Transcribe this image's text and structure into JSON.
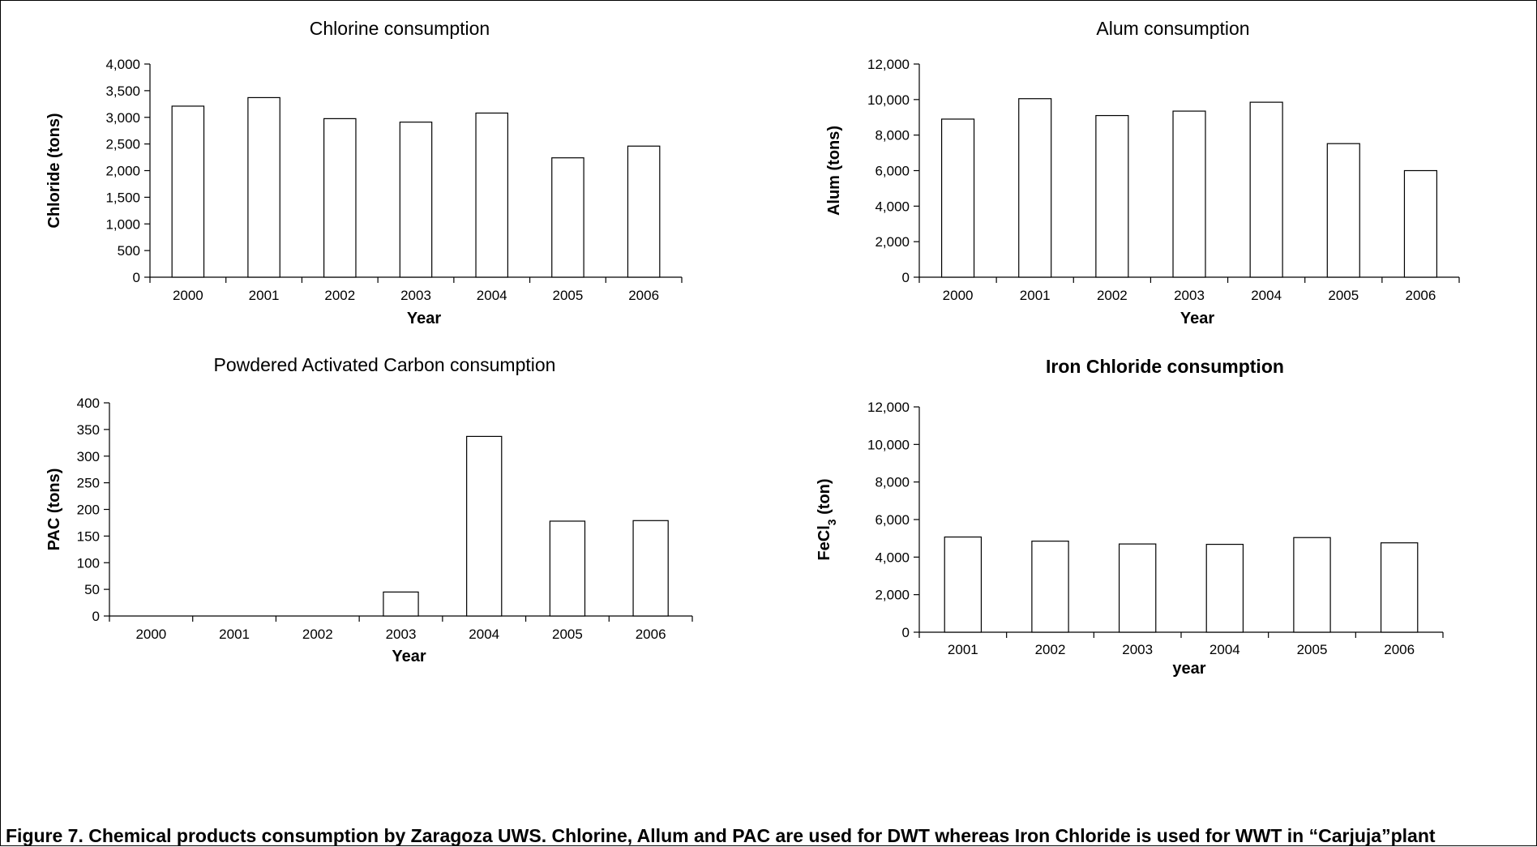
{
  "figure": {
    "caption": "Figure 7. Chemical products consumption by Zaragoza UWS. Chlorine, Allum and PAC are used for DWT whereas Iron Chloride is used for WWT in “Carjuja”plant"
  },
  "chart_data": [
    {
      "type": "bar",
      "title": "Chlorine consumption",
      "title_bold": false,
      "xlabel": "Year",
      "ylabel": "Chloride (tons)",
      "categories": [
        "2000",
        "2001",
        "2002",
        "2003",
        "2004",
        "2005",
        "2006"
      ],
      "values": [
        3210,
        3370,
        2975,
        2910,
        3080,
        2240,
        2460
      ],
      "ylim": [
        0,
        4000
      ],
      "yticks": [
        0,
        500,
        1000,
        1500,
        2000,
        2500,
        3000,
        3500,
        4000
      ],
      "ytick_labels": [
        "0",
        "500",
        "1,000",
        "1,500",
        "2,000",
        "2,500",
        "3,000",
        "3,500",
        "4,000"
      ],
      "bar_fill": "#ffffff",
      "bar_stroke": "#000000",
      "grid": false,
      "legend": "none"
    },
    {
      "type": "bar",
      "title": "Alum consumption",
      "title_bold": false,
      "xlabel": "Year",
      "ylabel": "Alum (tons)",
      "categories": [
        "2000",
        "2001",
        "2002",
        "2003",
        "2004",
        "2005",
        "2006"
      ],
      "values": [
        8900,
        10050,
        9100,
        9350,
        9850,
        7520,
        6000
      ],
      "ylim": [
        0,
        12000
      ],
      "yticks": [
        0,
        2000,
        4000,
        6000,
        8000,
        10000,
        12000
      ],
      "ytick_labels": [
        "0",
        "2,000",
        "4,000",
        "6,000",
        "8,000",
        "10,000",
        "12,000"
      ],
      "bar_fill": "#ffffff",
      "bar_stroke": "#000000",
      "grid": false,
      "legend": "none"
    },
    {
      "type": "bar",
      "title": "Powdered Activated Carbon consumption",
      "title_bold": false,
      "xlabel": "Year",
      "ylabel": "PAC (tons)",
      "categories": [
        "2000",
        "2001",
        "2002",
        "2003",
        "2004",
        "2005",
        "2006"
      ],
      "values": [
        0,
        0,
        0,
        45,
        337,
        178,
        179
      ],
      "ylim": [
        0,
        400
      ],
      "yticks": [
        0,
        50,
        100,
        150,
        200,
        250,
        300,
        350,
        400
      ],
      "ytick_labels": [
        "0",
        "50",
        "100",
        "150",
        "200",
        "250",
        "300",
        "350",
        "400"
      ],
      "bar_fill": "#ffffff",
      "bar_stroke": "#000000",
      "grid": false,
      "legend": "none"
    },
    {
      "type": "bar",
      "title": "Iron Chloride consumption",
      "title_bold": true,
      "xlabel": "year",
      "ylabel": "FeCl3 (ton)",
      "ylabel_parts": {
        "pre": "FeCl",
        "sub": "3",
        "post": " (ton)"
      },
      "categories": [
        "2001",
        "2002",
        "2003",
        "2004",
        "2005",
        "2006"
      ],
      "values": [
        5070,
        4850,
        4700,
        4680,
        5040,
        4760
      ],
      "ylim": [
        0,
        12000
      ],
      "yticks": [
        0,
        2000,
        4000,
        6000,
        8000,
        10000,
        12000
      ],
      "ytick_labels": [
        "0",
        "2,000",
        "4,000",
        "6,000",
        "8,000",
        "10,000",
        "12,000"
      ],
      "bar_fill": "#ffffff",
      "bar_stroke": "#000000",
      "grid": false,
      "legend": "none"
    }
  ]
}
